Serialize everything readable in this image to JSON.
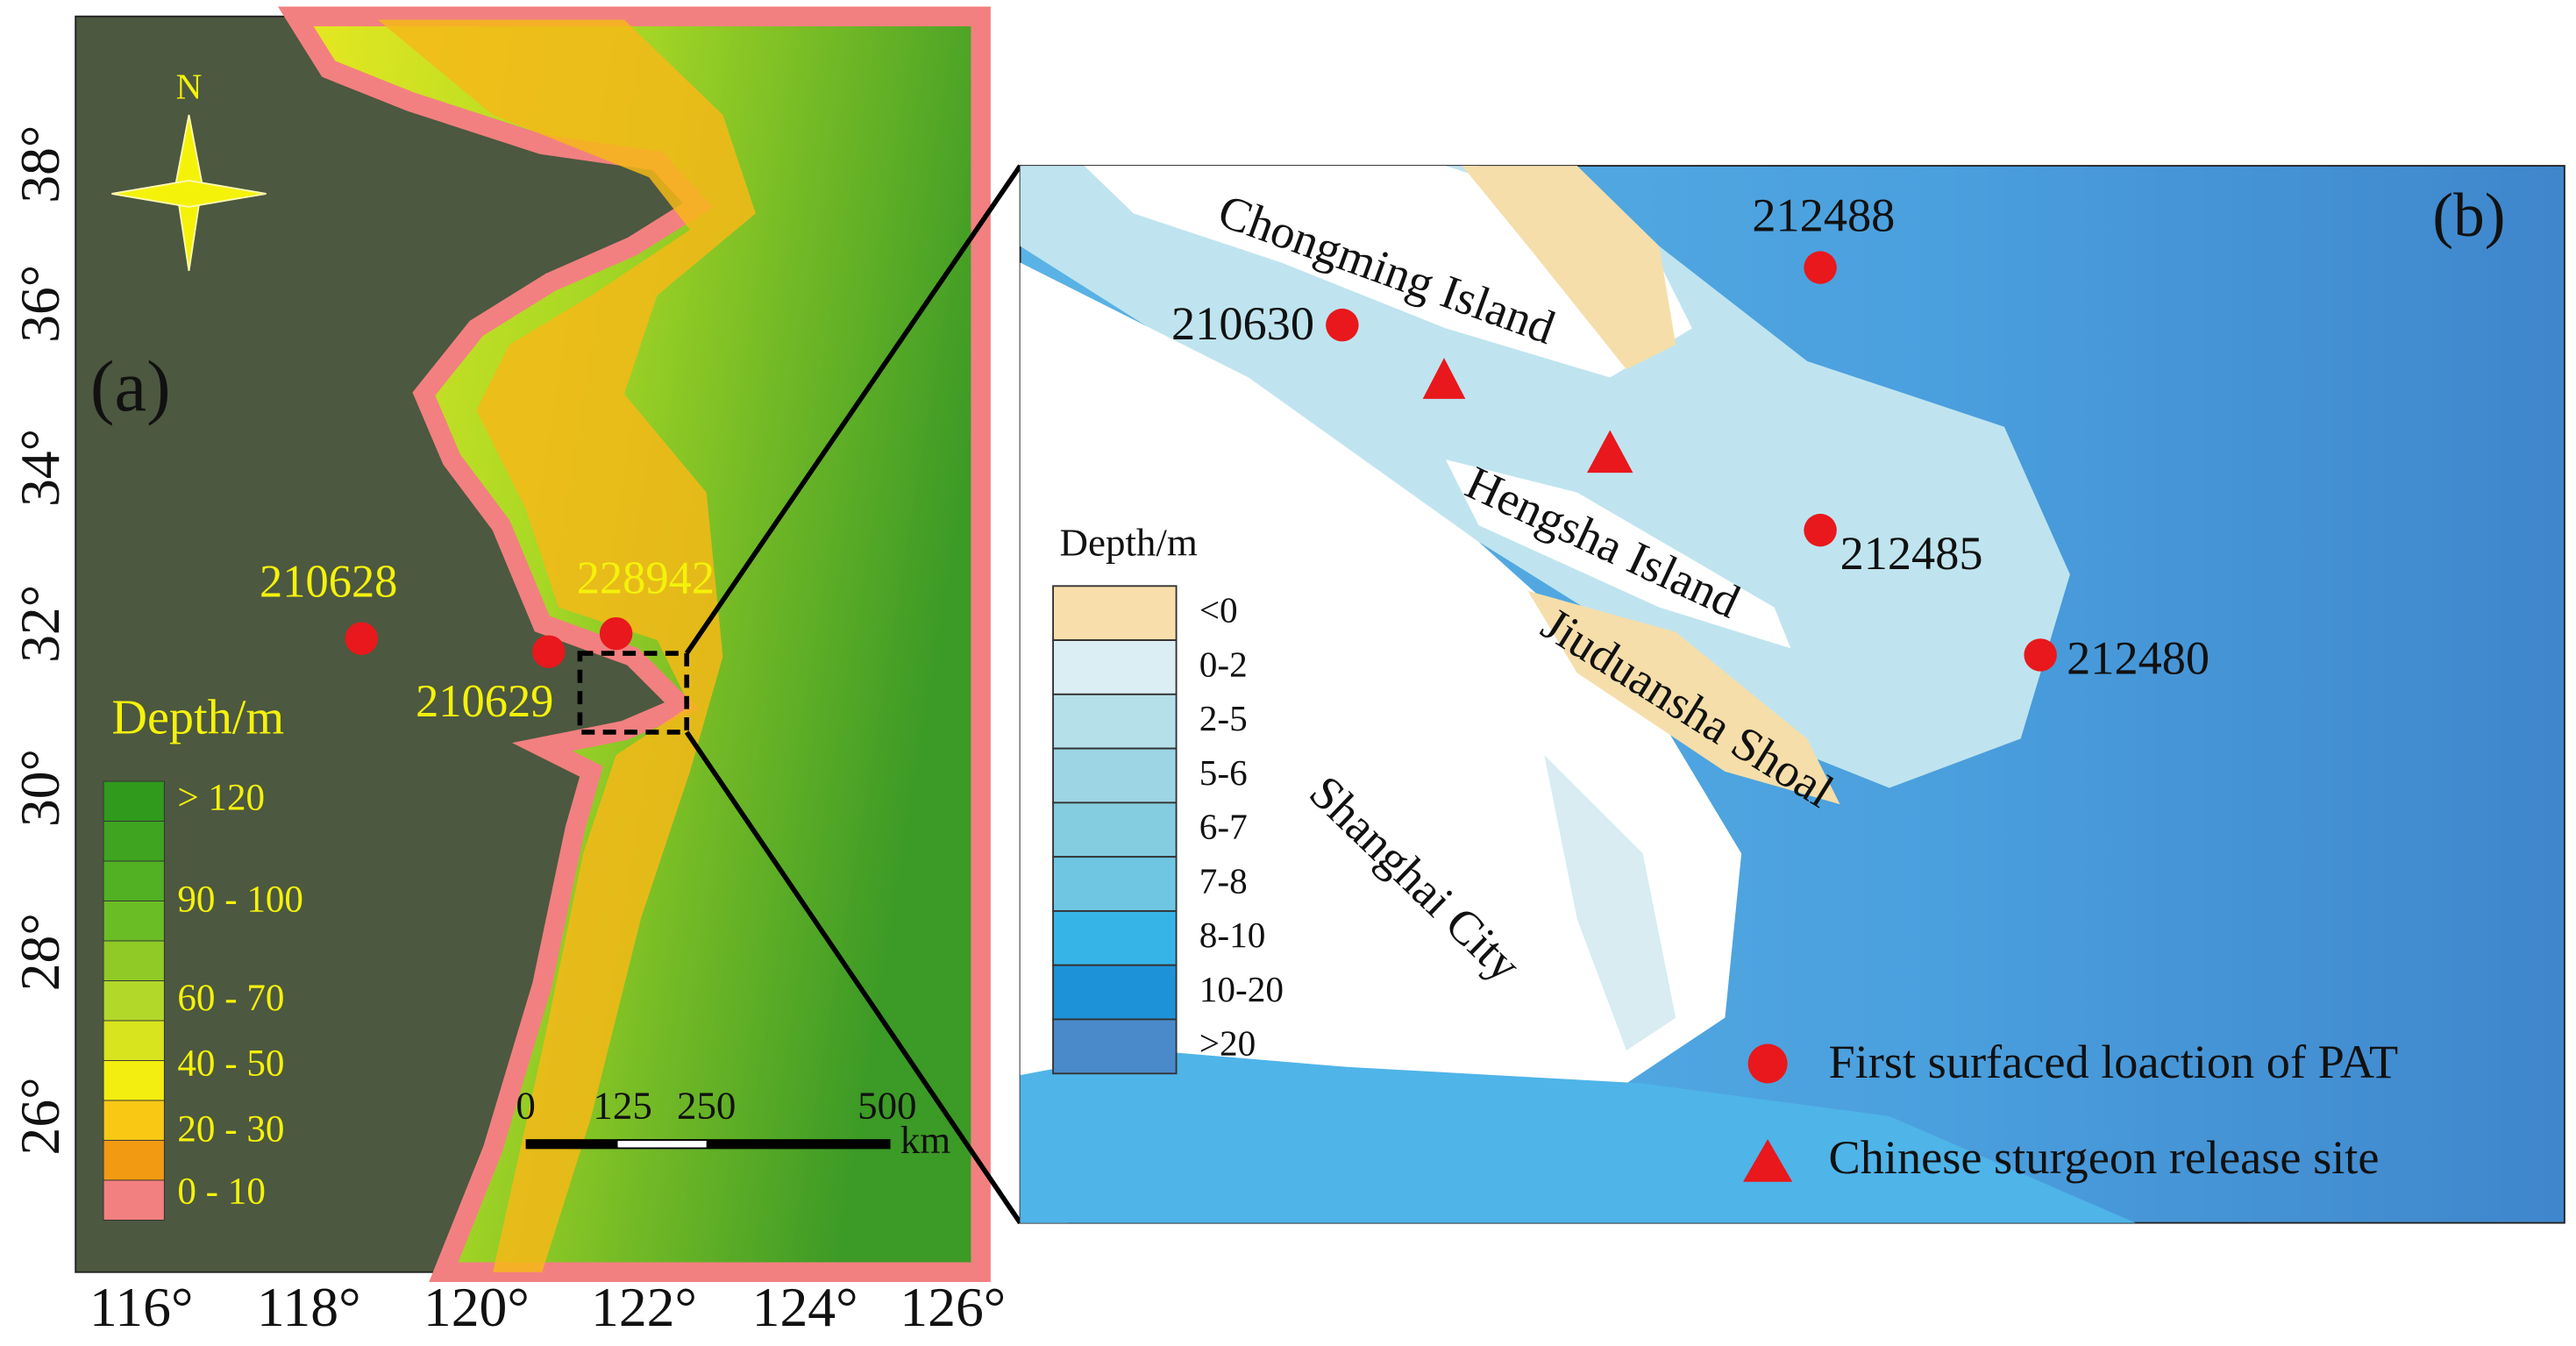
{
  "panel_a": {
    "label": "(a)",
    "north": "N",
    "xticks": [
      "116°",
      "118°",
      "120°",
      "122°",
      "124°",
      "126°"
    ],
    "yticks": [
      "26°",
      "28°",
      "30°",
      "32°",
      "34°",
      "36°",
      "38°"
    ],
    "points": [
      "210628",
      "228942",
      "210629"
    ],
    "legend_title": "Depth/m",
    "legend_items": [
      "> 120",
      "90 - 100",
      "60 - 70",
      "40 - 50",
      "20 - 30",
      "0 - 10"
    ],
    "scale_labels": [
      "0",
      "125",
      "250",
      "500"
    ],
    "scale_unit": "km"
  },
  "panel_b": {
    "label": "(b)",
    "places": [
      "Chongming Island",
      "Hengsha Island",
      "Jiuduansha Shoal",
      "Shanghai City"
    ],
    "points": [
      "212488",
      "210630",
      "212485",
      "212480"
    ],
    "legend_title": "Depth/m",
    "legend_items": [
      "<0",
      "0-2",
      "2-5",
      "5-6",
      "6-7",
      "7-8",
      "8-10",
      "10-20",
      ">20"
    ],
    "key": [
      "First surfaced loaction of PAT",
      "Chinese sturgeon release site"
    ]
  }
}
